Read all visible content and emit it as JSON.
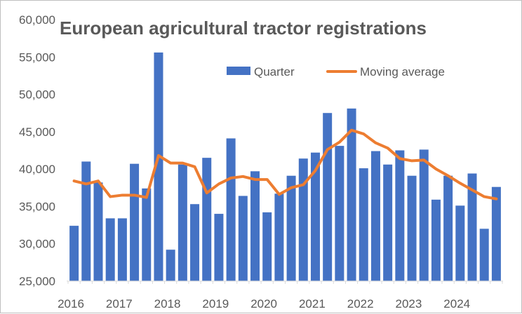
{
  "chart_data": {
    "type": "bar",
    "title": "European agricultural tractor registrations",
    "xlabel": "",
    "ylabel": "",
    "ylim": [
      25000,
      60000
    ],
    "yticks": [
      "25,000",
      "30,000",
      "35,000",
      "40,000",
      "45,000",
      "50,000",
      "55,000",
      "60,000"
    ],
    "ytick_values": [
      25000,
      30000,
      35000,
      40000,
      45000,
      50000,
      55000,
      60000
    ],
    "xtick_labels": [
      "2016",
      "2017",
      "2018",
      "2019",
      "2020",
      "2021",
      "2022",
      "2023",
      "2024"
    ],
    "grid": false,
    "legend_position": "top-right",
    "series": [
      {
        "name": "Quarter",
        "type": "bar",
        "color": "#4472c4",
        "values": [
          32400,
          41000,
          38200,
          33400,
          33400,
          40700,
          37400,
          55600,
          29200,
          40600,
          35300,
          41500,
          34000,
          44100,
          36400,
          39700,
          34200,
          36700,
          39100,
          41400,
          42200,
          47500,
          43100,
          48100,
          40100,
          42400,
          40600,
          42500,
          39100,
          42600,
          35900,
          39100,
          35100,
          39400,
          32000,
          37600
        ]
      },
      {
        "name": "Moving average",
        "type": "line",
        "color": "#ed7d31",
        "values": [
          38400,
          38000,
          38400,
          36300,
          36500,
          36500,
          36200,
          41800,
          40800,
          40800,
          40300,
          36800,
          38000,
          38800,
          39000,
          38600,
          38600,
          36600,
          37500,
          37900,
          39800,
          42600,
          43600,
          45200,
          44700,
          43500,
          42800,
          41400,
          41100,
          41200,
          40000,
          39100,
          38100,
          37200,
          36300,
          36000
        ]
      }
    ]
  }
}
